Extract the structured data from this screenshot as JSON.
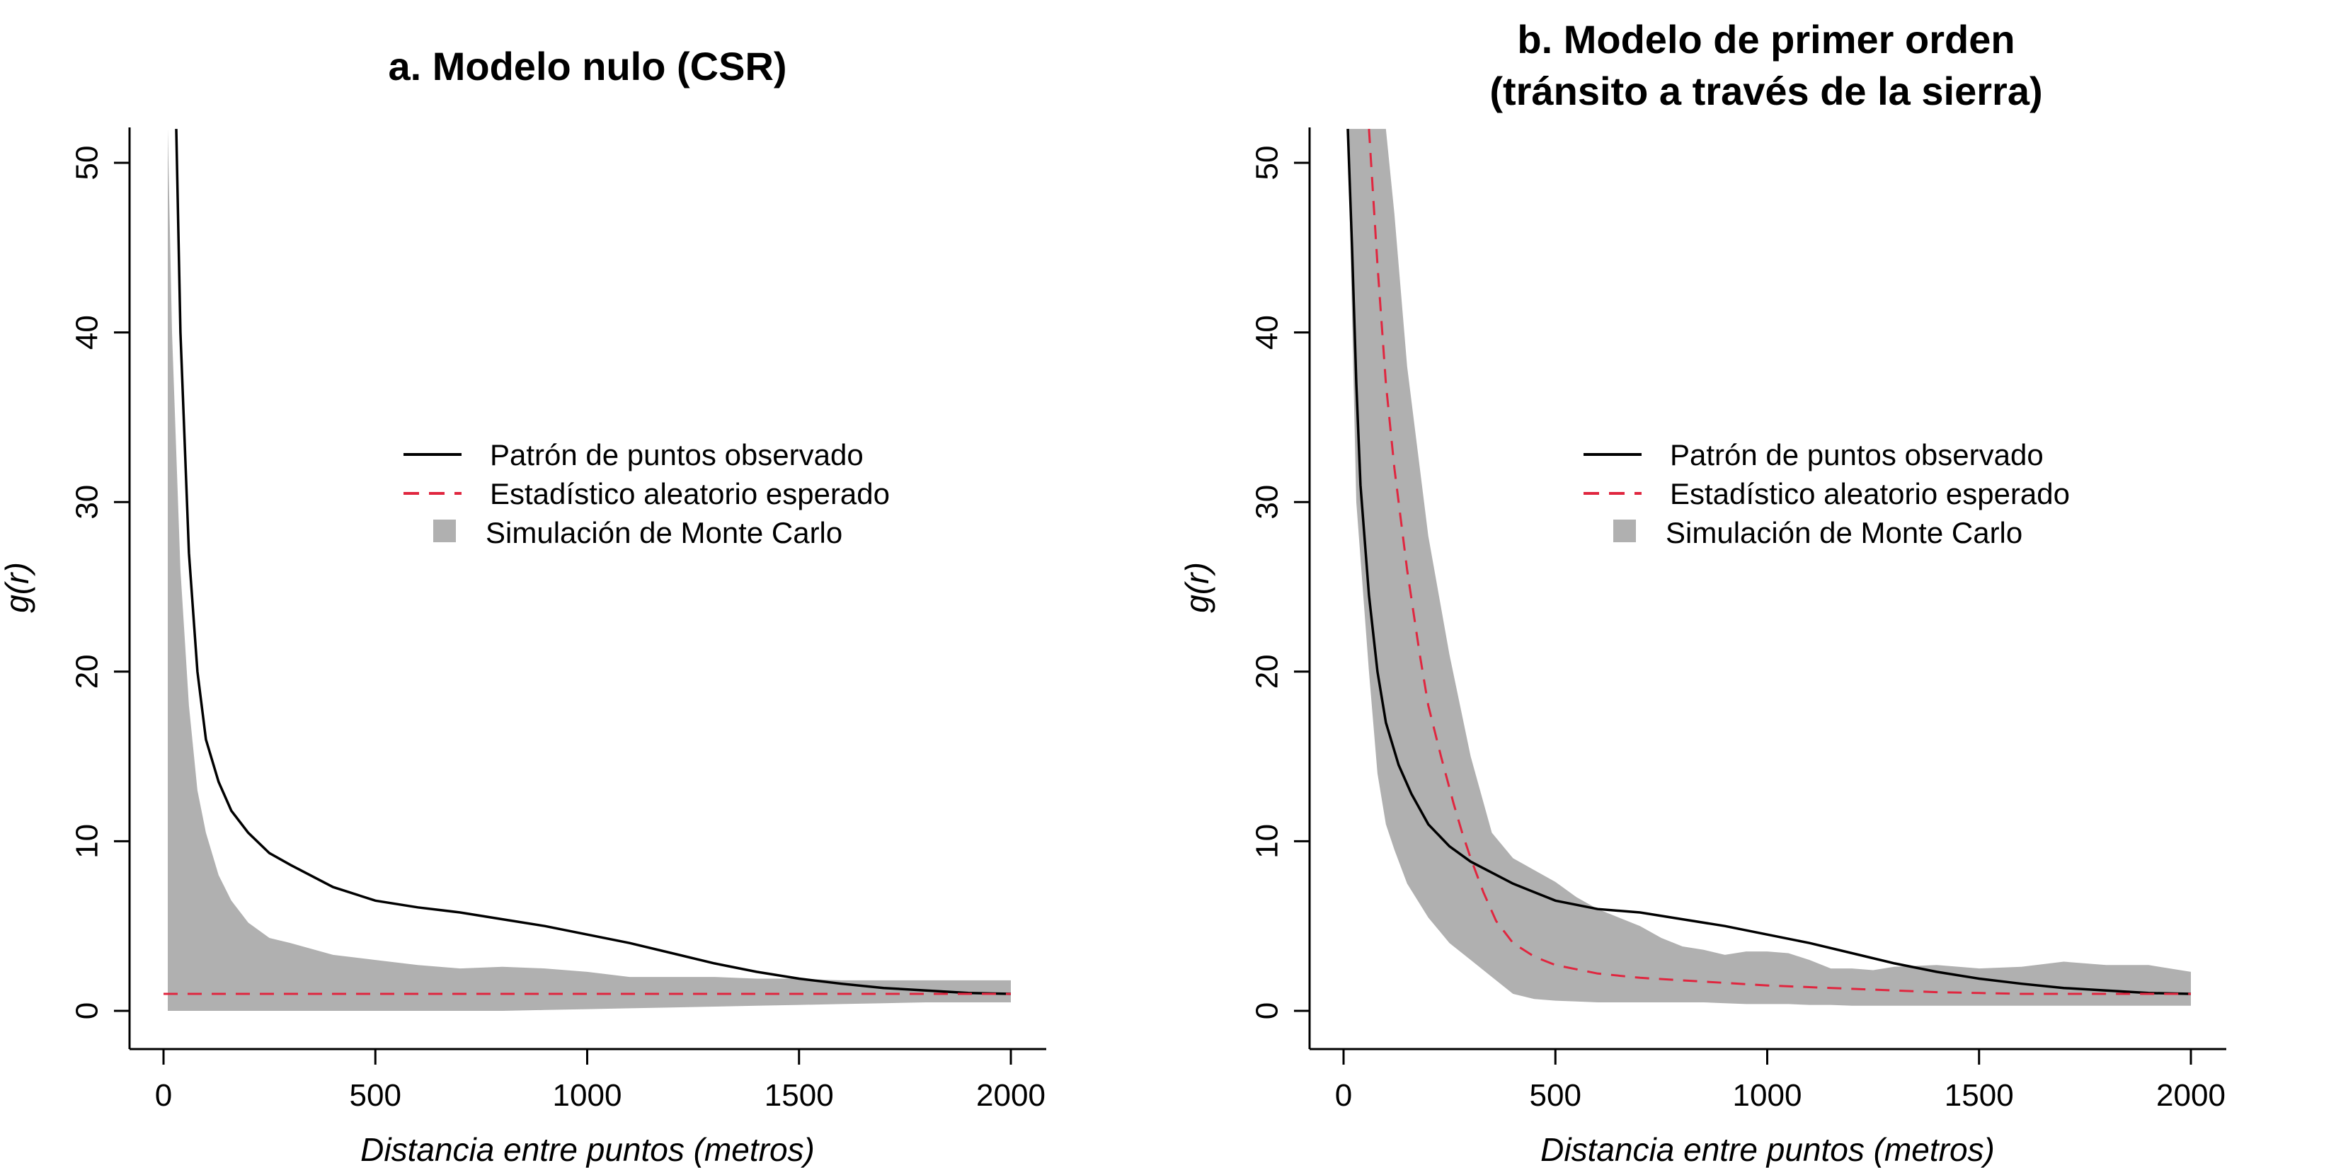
{
  "chart_data": [
    {
      "type": "line",
      "title_lines": [
        "a. Modelo nulo (CSR)"
      ],
      "xlabel": "Distancia entre puntos (metros)",
      "ylabel": "g(r)",
      "xlim": [
        0,
        2000
      ],
      "ylim": [
        0,
        52
      ],
      "xticks": [
        "0",
        "500",
        "1000",
        "1500",
        "2000"
      ],
      "yticks": [
        "0",
        "10",
        "20",
        "30",
        "40",
        "50"
      ],
      "legend_position": "center",
      "legend": [
        {
          "label": "Patrón de puntos observado",
          "kind": "line"
        },
        {
          "label": "Estadístico aleatorio esperado",
          "kind": "dashed"
        },
        {
          "label": "Simulación de Monte Carlo",
          "kind": "band"
        }
      ],
      "envelope": {
        "name": "Simulación de Monte Carlo",
        "x": [
          10,
          20,
          40,
          60,
          80,
          100,
          130,
          160,
          200,
          250,
          300,
          400,
          500,
          600,
          700,
          800,
          900,
          1000,
          1100,
          1200,
          1300,
          1400,
          1500,
          1600,
          1700,
          1800,
          1900,
          2000
        ],
        "upper": [
          52,
          40,
          26,
          18,
          13,
          10.5,
          8,
          6.5,
          5.2,
          4.3,
          4.0,
          3.3,
          3.0,
          2.7,
          2.5,
          2.6,
          2.5,
          2.3,
          2.0,
          2.0,
          2.0,
          1.9,
          1.9,
          1.8,
          1.8,
          1.8,
          1.8,
          1.8
        ],
        "lower": [
          0,
          0,
          0,
          0,
          0,
          0,
          0,
          0,
          0,
          0,
          0,
          0,
          0,
          0,
          0,
          0,
          0.05,
          0.1,
          0.15,
          0.2,
          0.25,
          0.3,
          0.35,
          0.4,
          0.45,
          0.5,
          0.5,
          0.5
        ]
      },
      "series": [
        {
          "name": "Patrón de puntos observado",
          "style": "solid",
          "color": "#000000",
          "x": [
            30,
            40,
            60,
            80,
            100,
            130,
            160,
            200,
            250,
            300,
            400,
            500,
            600,
            700,
            800,
            900,
            1000,
            1100,
            1200,
            1300,
            1400,
            1500,
            1600,
            1700,
            1800,
            1900,
            2000
          ],
          "values": [
            52,
            40,
            27,
            20,
            16,
            13.5,
            11.8,
            10.5,
            9.3,
            8.6,
            7.3,
            6.5,
            6.1,
            5.8,
            5.4,
            5.0,
            4.5,
            4.0,
            3.4,
            2.8,
            2.3,
            1.9,
            1.6,
            1.35,
            1.2,
            1.05,
            1.0
          ]
        },
        {
          "name": "Estadístico aleatorio esperado",
          "style": "dashed",
          "color": "#e0263f",
          "x": [
            0,
            2000
          ],
          "values": [
            1,
            1
          ]
        }
      ]
    },
    {
      "type": "line",
      "title_lines": [
        "b. Modelo de primer orden",
        "(tránsito a través de la sierra)"
      ],
      "xlabel": "Distancia entre puntos (metros)",
      "ylabel": "g(r)",
      "xlim": [
        0,
        2000
      ],
      "ylim": [
        0,
        52
      ],
      "xticks": [
        "0",
        "500",
        "1000",
        "1500",
        "2000"
      ],
      "yticks": [
        "0",
        "10",
        "20",
        "30",
        "40",
        "50"
      ],
      "legend_position": "center",
      "legend": [
        {
          "label": "Patrón de puntos observado",
          "kind": "line"
        },
        {
          "label": "Estadístico aleatorio esperado",
          "kind": "dashed"
        },
        {
          "label": "Simulación de Monte Carlo",
          "kind": "band"
        }
      ],
      "envelope": {
        "name": "Simulación de Monte Carlo",
        "x": [
          10,
          30,
          60,
          80,
          100,
          120,
          150,
          200,
          250,
          300,
          350,
          400,
          450,
          500,
          550,
          600,
          650,
          700,
          750,
          800,
          850,
          900,
          950,
          1000,
          1050,
          1100,
          1150,
          1200,
          1250,
          1300,
          1400,
          1500,
          1600,
          1700,
          1800,
          1900,
          2000
        ],
        "upper": [
          52,
          52,
          52,
          52,
          52,
          47,
          38,
          28,
          21,
          15,
          10.5,
          9.0,
          8.3,
          7.6,
          6.7,
          6.0,
          5.5,
          5.0,
          4.3,
          3.8,
          3.6,
          3.3,
          3.5,
          3.5,
          3.4,
          3.0,
          2.5,
          2.5,
          2.4,
          2.6,
          2.7,
          2.5,
          2.6,
          2.9,
          2.7,
          2.7,
          2.3
        ],
        "lower": [
          52,
          30,
          20,
          14,
          11,
          9.5,
          7.5,
          5.5,
          4.0,
          3.0,
          2.0,
          1.0,
          0.7,
          0.6,
          0.55,
          0.5,
          0.5,
          0.5,
          0.5,
          0.5,
          0.5,
          0.45,
          0.4,
          0.4,
          0.4,
          0.35,
          0.35,
          0.3,
          0.3,
          0.3,
          0.3,
          0.3,
          0.3,
          0.3,
          0.3,
          0.3,
          0.3
        ]
      },
      "series": [
        {
          "name": "Patrón de puntos observado",
          "style": "solid",
          "color": "#000000",
          "x": [
            10,
            20,
            30,
            40,
            60,
            80,
            100,
            130,
            160,
            200,
            250,
            300,
            400,
            500,
            600,
            700,
            800,
            900,
            1000,
            1100,
            1200,
            1300,
            1400,
            1500,
            1600,
            1700,
            1800,
            1900,
            2000
          ],
          "values": [
            52,
            45,
            37,
            31,
            24.5,
            20,
            17,
            14.5,
            12.8,
            11,
            9.7,
            8.8,
            7.5,
            6.5,
            6.0,
            5.8,
            5.4,
            5.0,
            4.5,
            4.0,
            3.4,
            2.8,
            2.3,
            1.9,
            1.6,
            1.35,
            1.2,
            1.05,
            1.0
          ]
        },
        {
          "name": "Estadístico aleatorio esperado",
          "style": "dashed",
          "color": "#e0263f",
          "x": [
            60,
            70,
            80,
            100,
            120,
            150,
            180,
            200,
            230,
            260,
            280,
            300,
            330,
            360,
            400,
            450,
            500,
            600,
            700,
            800,
            900,
            1000,
            1100,
            1200,
            1300,
            1400,
            1500,
            1600,
            1700,
            1800,
            1900,
            2000
          ],
          "values": [
            52,
            48,
            44,
            37,
            32,
            26,
            21,
            18,
            15,
            12.2,
            10.5,
            9.0,
            7.0,
            5.3,
            4.0,
            3.2,
            2.7,
            2.2,
            1.95,
            1.8,
            1.65,
            1.5,
            1.4,
            1.3,
            1.2,
            1.1,
            1.05,
            1.0,
            1.0,
            1.0,
            1.0,
            1.0
          ]
        }
      ]
    }
  ]
}
